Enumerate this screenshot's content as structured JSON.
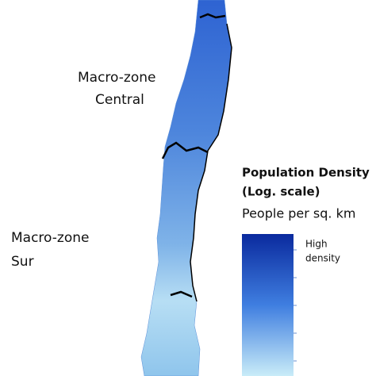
{
  "zones": [
    {
      "line1": "Macro-zone",
      "line2": "Central"
    },
    {
      "line1": "Macro-zone",
      "line2": "Sur"
    }
  ],
  "legend": {
    "title": "Population Density",
    "scale": "(Log. scale)",
    "unit": "People per sq. km",
    "high_line1": "High",
    "high_line2": "density"
  }
}
